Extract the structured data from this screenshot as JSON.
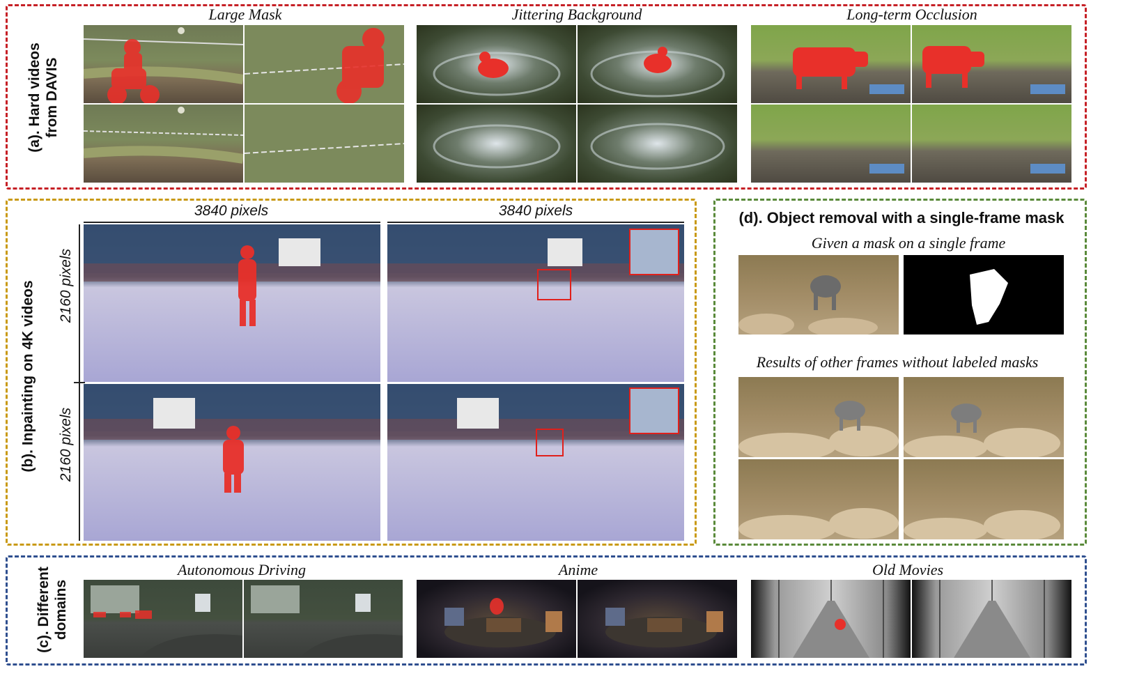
{
  "panels": {
    "a": {
      "label_line1": "(a). Hard videos",
      "label_line2": "from DAVIS",
      "border_color": "#c62026",
      "captions": [
        "Large Mask",
        "Jittering  Background",
        "Long-term  Occlusion"
      ]
    },
    "b": {
      "label": "(b). Inpainting on 4K videos",
      "border_color": "#c99a16",
      "width_label": "3840  pixels",
      "height_label": "2160  pixels"
    },
    "c": {
      "label_line1": "(c). Different",
      "label_line2": "domains",
      "border_color": "#2f4f8f",
      "captions": [
        "Autonomous  Driving",
        "Anime",
        "Old  Movies"
      ]
    },
    "d": {
      "title": "(d). Object removal with a single-frame mask",
      "border_color": "#5a8a3a",
      "caption_top": "Given a mask on a single  frame",
      "caption_bottom": "Results of other frames without labeled masks"
    }
  },
  "colors": {
    "mask_red": "#e8302a",
    "highlight_box": "#e0201b"
  },
  "icons": [
    "motorbike",
    "duck",
    "cow",
    "skater",
    "goat",
    "road",
    "anime-room",
    "bridge"
  ]
}
